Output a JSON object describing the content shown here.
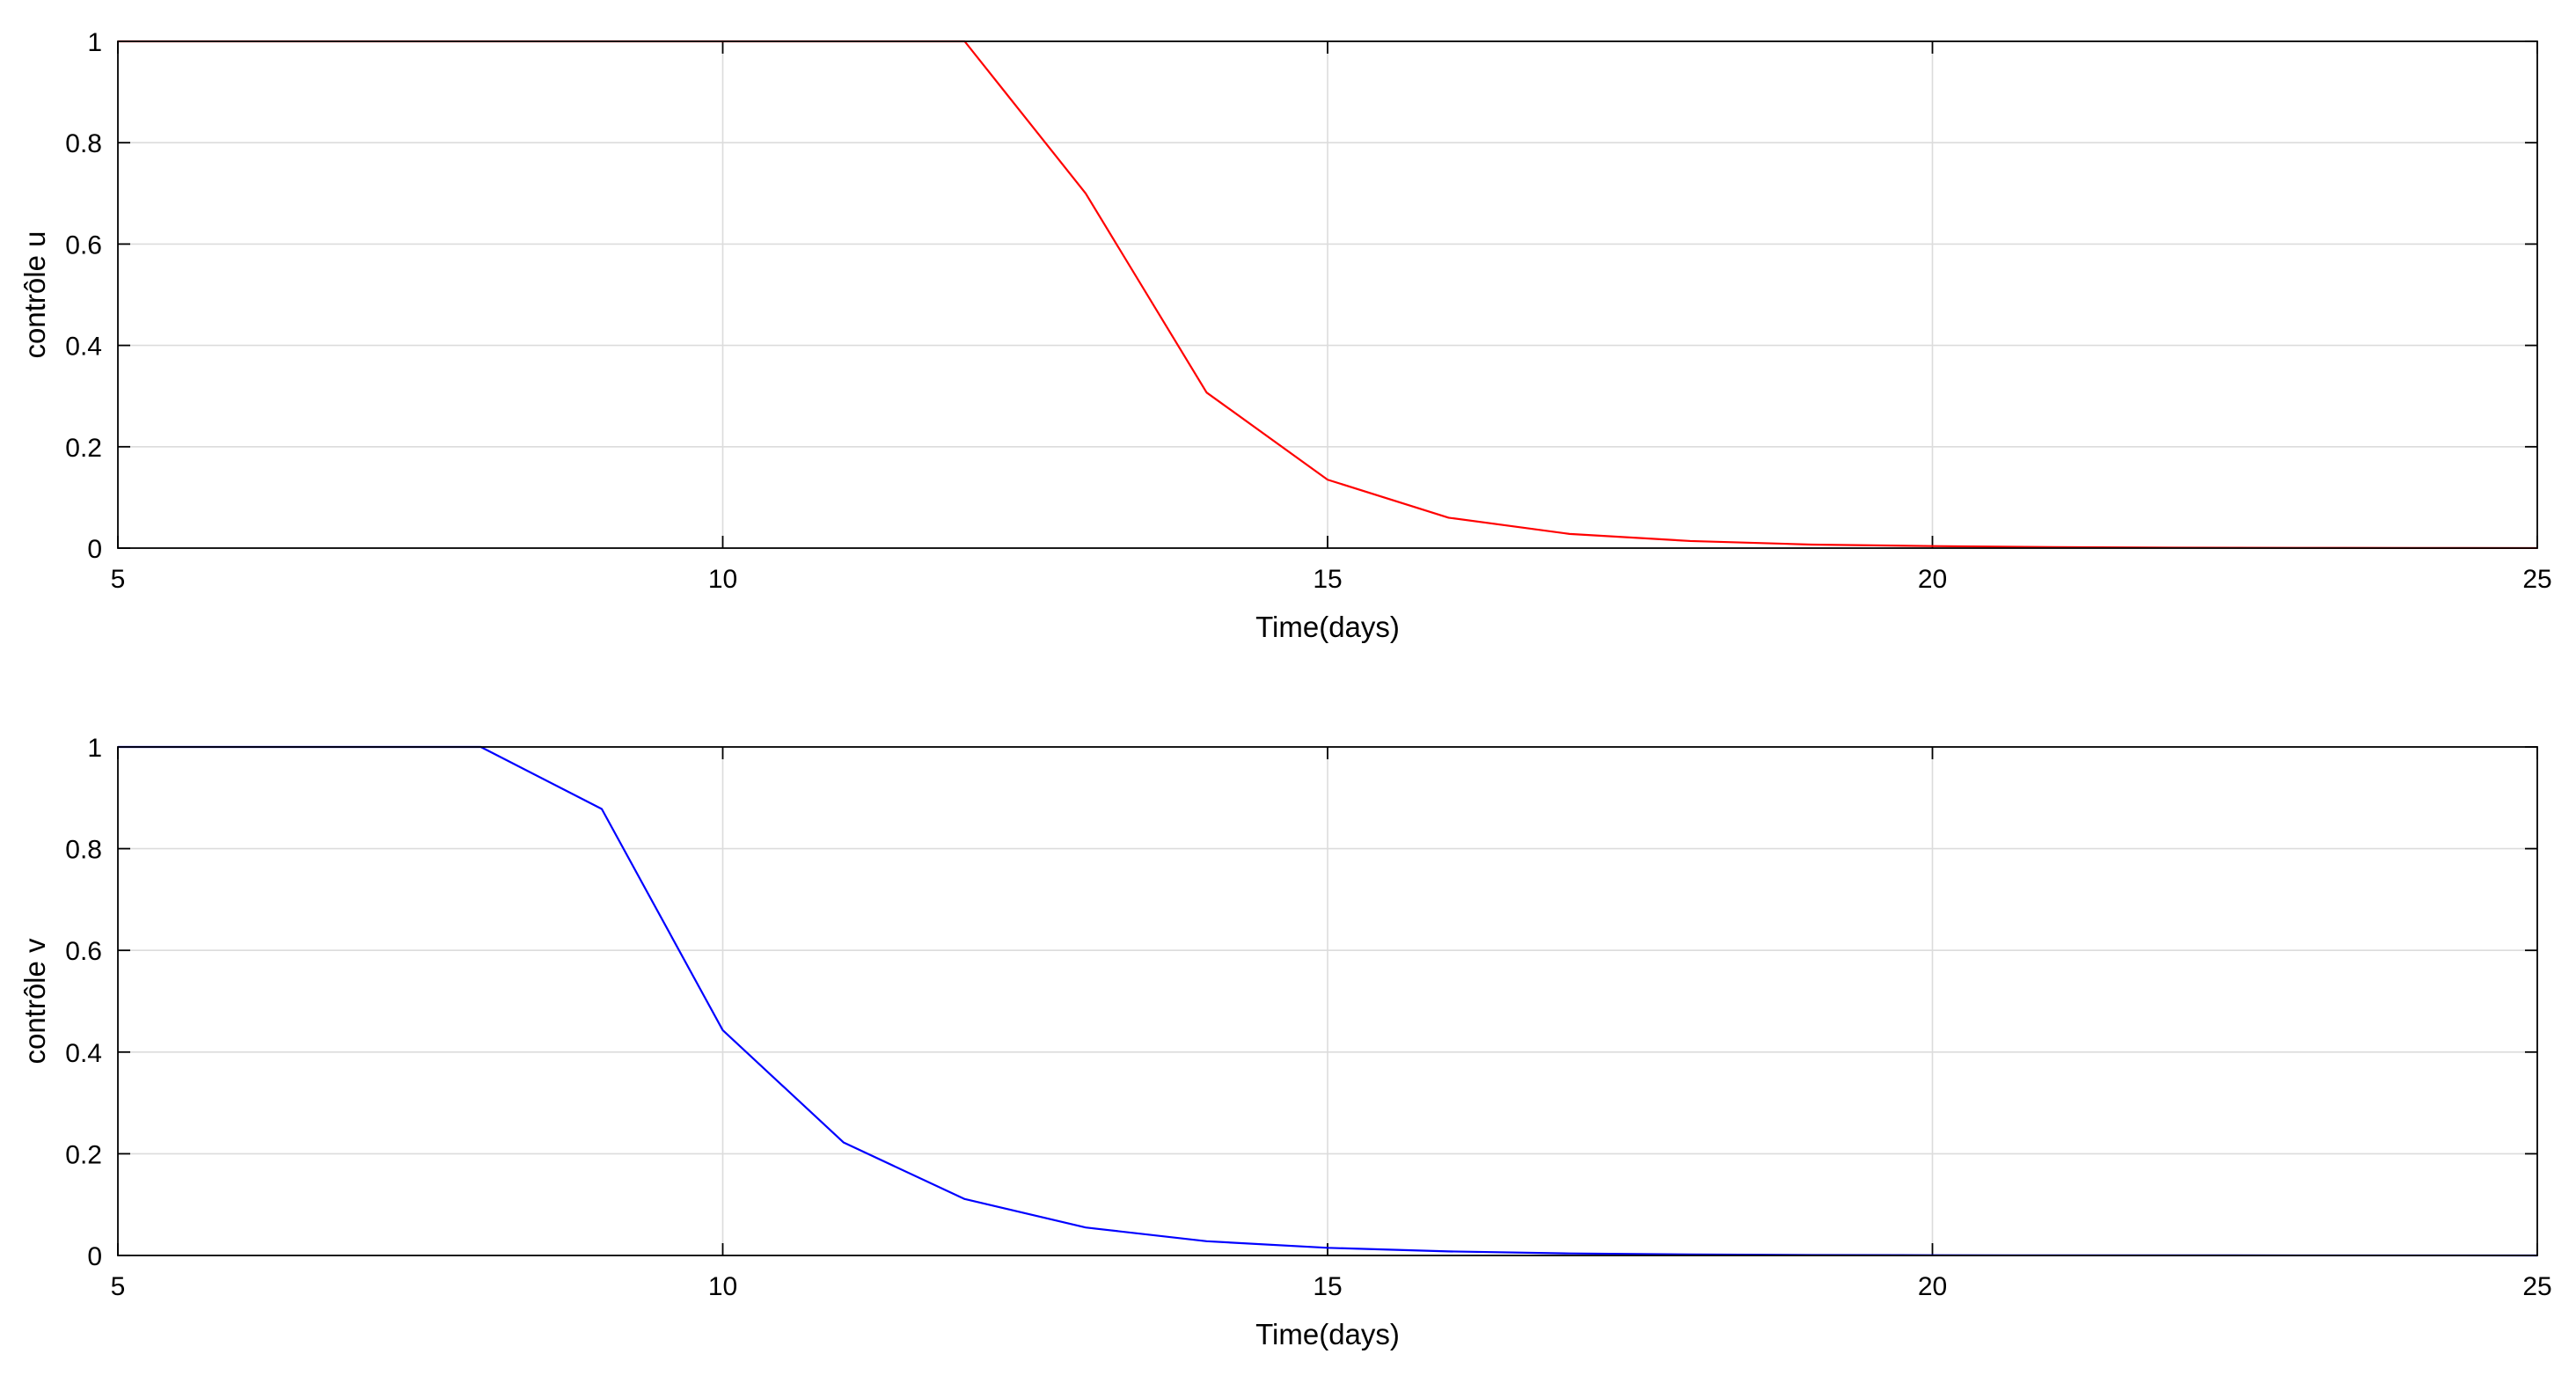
{
  "chart_data": [
    {
      "type": "line",
      "xlabel": "Time(days)",
      "ylabel": "contrôle u",
      "xlim": [
        5,
        25
      ],
      "ylim": [
        0,
        1
      ],
      "xticks": [
        5,
        10,
        15,
        20,
        25
      ],
      "yticks": [
        0,
        0.2,
        0.4,
        0.6,
        0.8,
        1
      ],
      "xtick_labels": [
        "5",
        "10",
        "15",
        "20",
        "25"
      ],
      "ytick_labels": [
        "0",
        "0.2",
        "0.4",
        "0.6",
        "0.8",
        "1"
      ],
      "grid": true,
      "series": [
        {
          "color": "#ff0000",
          "x": [
            5,
            6,
            7,
            8,
            9,
            10,
            11,
            12,
            13,
            14,
            15,
            16,
            17,
            18,
            19,
            20,
            21,
            22,
            23,
            24,
            25
          ],
          "y": [
            1,
            1,
            1,
            1,
            1,
            1,
            1,
            1,
            0.7,
            0.307,
            0.135,
            0.06,
            0.028,
            0.014,
            0.007,
            0.004,
            0.002,
            0.001,
            0.0005,
            0.0002,
            0.0001
          ]
        }
      ]
    },
    {
      "type": "line",
      "xlabel": "Time(days)",
      "ylabel": "contrôle v",
      "xlim": [
        5,
        25
      ],
      "ylim": [
        0,
        1
      ],
      "xticks": [
        5,
        10,
        15,
        20,
        25
      ],
      "yticks": [
        0,
        0.2,
        0.4,
        0.6,
        0.8,
        1
      ],
      "xtick_labels": [
        "5",
        "10",
        "15",
        "20",
        "25"
      ],
      "ytick_labels": [
        "0",
        "0.2",
        "0.4",
        "0.6",
        "0.8",
        "1"
      ],
      "grid": true,
      "series": [
        {
          "color": "#0000ff",
          "x": [
            5,
            6,
            7,
            8,
            9,
            10,
            11,
            12,
            13,
            14,
            15,
            16,
            17,
            18,
            19,
            20,
            21,
            22,
            23,
            24,
            25
          ],
          "y": [
            1,
            1,
            1,
            1,
            0.878,
            0.443,
            0.222,
            0.111,
            0.055,
            0.028,
            0.015,
            0.008,
            0.004,
            0.002,
            0.001,
            0.0005,
            0.0003,
            0.0002,
            0.0001,
            0.0001,
            0
          ]
        }
      ]
    }
  ]
}
